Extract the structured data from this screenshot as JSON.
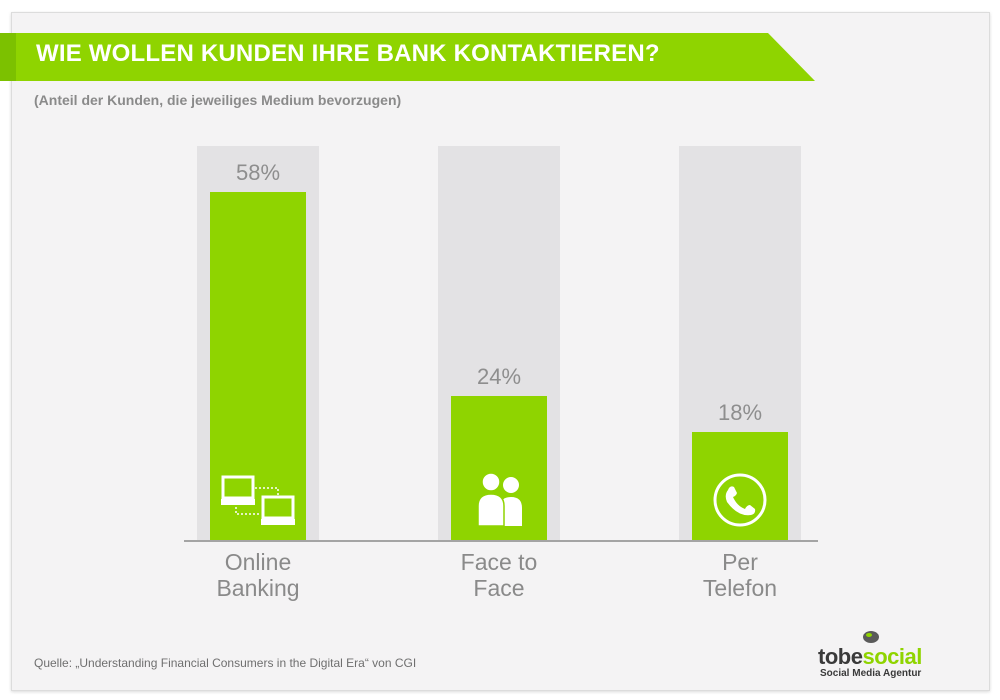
{
  "header": {
    "title": "WIE WOLLEN KUNDEN IHRE BANK KONTAKTIEREN?",
    "subtitle": "(Anteil der Kunden, die jeweiliges Medium bevorzugen)"
  },
  "colors": {
    "accent": "#8fd400",
    "bar_bg": "#e3e2e4",
    "text": "#8a8a8a"
  },
  "chart_data": {
    "type": "bar",
    "title": "WIE WOLLEN KUNDEN IHRE BANK KONTAKTIEREN?",
    "subtitle": "(Anteil der Kunden, die jeweiliges Medium bevorzugen)",
    "categories": [
      "Online Banking",
      "Face to Face",
      "Per Telefon"
    ],
    "category_lines": [
      [
        "Online",
        "Banking"
      ],
      [
        "Face to",
        "Face"
      ],
      [
        "Per",
        "Telefon"
      ]
    ],
    "values": [
      58,
      24,
      18
    ],
    "value_labels": [
      "58%",
      "24%",
      "18%"
    ],
    "icons": [
      "computers-icon",
      "people-icon",
      "phone-icon"
    ],
    "ylim": [
      0,
      100
    ],
    "grid": false
  },
  "source": "Quelle: „Understanding Financial Consumers in the Digital Era“ von CGI",
  "logo": {
    "name_part1": "tobe",
    "name_part2": "social",
    "tagline": "Social Media Agentur"
  }
}
